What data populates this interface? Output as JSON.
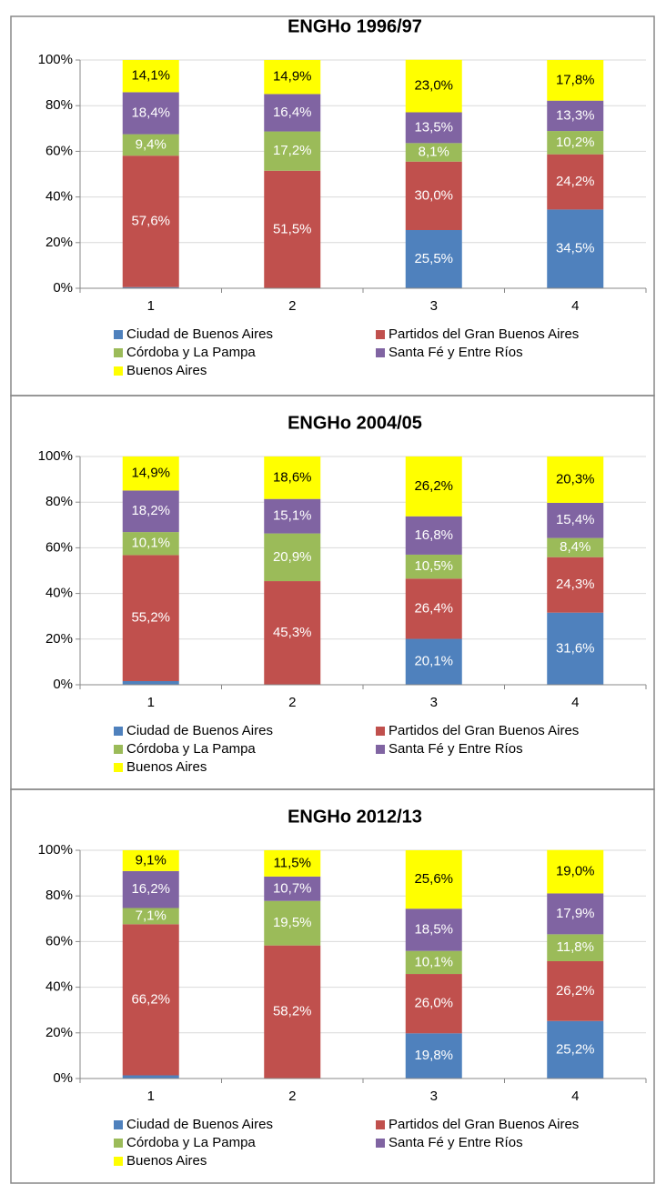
{
  "chart_data": [
    {
      "type": "stacked_bar",
      "title": "ENGHo 1996/97",
      "categories": [
        "1",
        "2",
        "3",
        "4"
      ],
      "ylim": [
        0,
        100
      ],
      "yticks": [
        {
          "value": 0,
          "label": "0%"
        },
        {
          "value": 20,
          "label": "20%"
        },
        {
          "value": 40,
          "label": "40%"
        },
        {
          "value": 60,
          "label": "60%"
        },
        {
          "value": 80,
          "label": "80%"
        },
        {
          "value": 100,
          "label": "100%"
        }
      ],
      "series": [
        {
          "name": "Ciudad de Buenos Aires",
          "color": "#4f81bd",
          "values": [
            0.5,
            0.0,
            25.5,
            34.5
          ],
          "value_labels": [
            null,
            null,
            "25,5%",
            "34,5%"
          ]
        },
        {
          "name": "Partidos del Gran Buenos Aires",
          "color": "#c0504d",
          "values": [
            57.6,
            51.5,
            30.0,
            24.2
          ],
          "value_labels": [
            "57,6%",
            "51,5%",
            "30,0%",
            "24,2%"
          ]
        },
        {
          "name": "Córdoba y La Pampa",
          "color": "#9bbb59",
          "values": [
            9.4,
            17.2,
            8.1,
            10.2
          ],
          "value_labels": [
            "9,4%",
            "17,2%",
            "8,1%",
            "10,2%"
          ]
        },
        {
          "name": "Santa Fé y Entre Ríos",
          "color": "#8064a2",
          "values": [
            18.4,
            16.4,
            13.5,
            13.3
          ],
          "value_labels": [
            "18,4%",
            "16,4%",
            "13,5%",
            "13,3%"
          ]
        },
        {
          "name": "Buenos Aires",
          "color": "#ffff00",
          "values": [
            14.1,
            14.9,
            23.0,
            17.8
          ],
          "value_labels": [
            "14,1%",
            "14,9%",
            "23,0%",
            "17,8%"
          ]
        }
      ]
    },
    {
      "type": "stacked_bar",
      "title": "ENGHo 2004/05",
      "categories": [
        "1",
        "2",
        "3",
        "4"
      ],
      "ylim": [
        0,
        100
      ],
      "yticks": [
        {
          "value": 0,
          "label": "0%"
        },
        {
          "value": 20,
          "label": "20%"
        },
        {
          "value": 40,
          "label": "40%"
        },
        {
          "value": 60,
          "label": "60%"
        },
        {
          "value": 80,
          "label": "80%"
        },
        {
          "value": 100,
          "label": "100%"
        }
      ],
      "series": [
        {
          "name": "Ciudad de Buenos Aires",
          "color": "#4f81bd",
          "values": [
            1.6,
            0.1,
            20.1,
            31.6
          ],
          "value_labels": [
            null,
            null,
            "20,1%",
            "31,6%"
          ]
        },
        {
          "name": "Partidos del Gran Buenos Aires",
          "color": "#c0504d",
          "values": [
            55.2,
            45.3,
            26.4,
            24.3
          ],
          "value_labels": [
            "55,2%",
            "45,3%",
            "26,4%",
            "24,3%"
          ]
        },
        {
          "name": "Córdoba y La Pampa",
          "color": "#9bbb59",
          "values": [
            10.1,
            20.9,
            10.5,
            8.4
          ],
          "value_labels": [
            "10,1%",
            "20,9%",
            "10,5%",
            "8,4%"
          ]
        },
        {
          "name": "Santa Fé y Entre Ríos",
          "color": "#8064a2",
          "values": [
            18.2,
            15.1,
            16.8,
            15.4
          ],
          "value_labels": [
            "18,2%",
            "15,1%",
            "16,8%",
            "15,4%"
          ]
        },
        {
          "name": "Buenos Aires",
          "color": "#ffff00",
          "values": [
            14.9,
            18.6,
            26.2,
            20.3
          ],
          "value_labels": [
            "14,9%",
            "18,6%",
            "26,2%",
            "20,3%"
          ]
        }
      ]
    },
    {
      "type": "stacked_bar",
      "title": "ENGHo 2012/13",
      "categories": [
        "1",
        "2",
        "3",
        "4"
      ],
      "ylim": [
        0,
        100
      ],
      "yticks": [
        {
          "value": 0,
          "label": "0%"
        },
        {
          "value": 20,
          "label": "20%"
        },
        {
          "value": 40,
          "label": "40%"
        },
        {
          "value": 60,
          "label": "60%"
        },
        {
          "value": 80,
          "label": "80%"
        },
        {
          "value": 100,
          "label": "100%"
        }
      ],
      "series": [
        {
          "name": "Ciudad de Buenos Aires",
          "color": "#4f81bd",
          "values": [
            1.4,
            0.1,
            19.8,
            25.2
          ],
          "value_labels": [
            null,
            null,
            "19,8%",
            "25,2%"
          ]
        },
        {
          "name": "Partidos del Gran Buenos Aires",
          "color": "#c0504d",
          "values": [
            66.2,
            58.2,
            26.0,
            26.2
          ],
          "value_labels": [
            "66,2%",
            "58,2%",
            "26,0%",
            "26,2%"
          ]
        },
        {
          "name": "Córdoba y La Pampa",
          "color": "#9bbb59",
          "values": [
            7.1,
            19.5,
            10.1,
            11.8
          ],
          "value_labels": [
            "7,1%",
            "19,5%",
            "10,1%",
            "11,8%"
          ]
        },
        {
          "name": "Santa Fé y Entre Ríos",
          "color": "#8064a2",
          "values": [
            16.2,
            10.7,
            18.5,
            17.9
          ],
          "value_labels": [
            "16,2%",
            "10,7%",
            "18,5%",
            "17,9%"
          ]
        },
        {
          "name": "Buenos Aires",
          "color": "#ffff00",
          "values": [
            9.1,
            11.5,
            25.6,
            19.0
          ],
          "value_labels": [
            "9,1%",
            "11,5%",
            "25,6%",
            "19,0%"
          ]
        }
      ]
    }
  ]
}
